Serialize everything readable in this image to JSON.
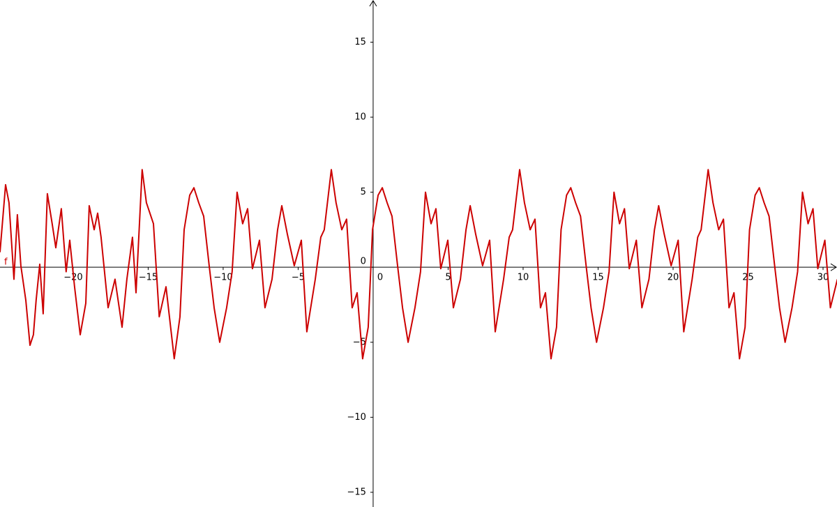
{
  "chart_data": {
    "type": "line",
    "xlim": [
      -24.88,
      30.93
    ],
    "ylim": [
      -15.98,
      17.81
    ],
    "xticks": [
      {
        "value": -20,
        "label": "−20"
      },
      {
        "value": -15,
        "label": "−15"
      },
      {
        "value": -10,
        "label": "−10"
      },
      {
        "value": -5,
        "label": "−5"
      },
      0,
      5,
      10,
      15,
      20,
      25,
      30
    ],
    "yticks": [
      {
        "value": -15,
        "label": "−15"
      },
      {
        "value": -10,
        "label": "−10"
      },
      {
        "value": -5,
        "label": "−5"
      },
      0,
      5,
      10,
      15
    ],
    "x": [
      -24.88,
      -24.51,
      -24.28,
      -23.95,
      -23.72,
      -23.49,
      -23.16,
      -22.88,
      -22.65,
      -22.47,
      -22.23,
      -22.0,
      -21.72,
      -21.4,
      -21.16,
      -20.79,
      -20.47,
      -20.23,
      -19.91,
      -19.53,
      -19.16,
      -18.93,
      -18.6,
      -18.37,
      -18.14,
      -17.67,
      -17.21,
      -16.74,
      -16.42,
      -16.05,
      -15.81,
      -15.4,
      -15.12,
      -14.65,
      -14.26,
      -13.81,
      -13.26,
      -12.88,
      -12.6,
      -12.23,
      -11.95,
      -11.63,
      -11.3,
      -10.93,
      -10.6,
      -10.23,
      -9.77,
      -9.4,
      -9.07,
      -8.7,
      -8.37,
      -8.05,
      -7.58,
      -7.21,
      -6.74,
      -6.37,
      -6.09,
      -5.72,
      -5.26,
      -4.79,
      -4.42,
      -3.86,
      -3.49,
      -3.26,
      -2.79,
      -2.47,
      -2.09,
      -1.77,
      -1.4,
      -1.07,
      -0.7,
      -0.33,
      -0.04,
      0.33,
      0.61,
      0.93,
      1.26,
      1.63,
      1.96,
      2.33,
      2.79,
      3.16,
      3.49,
      3.86,
      4.19,
      4.51,
      4.98,
      5.35,
      5.82,
      6.19,
      6.47,
      6.84,
      7.3,
      7.77,
      8.14,
      8.7,
      9.07,
      9.3,
      9.77,
      10.09,
      10.47,
      10.79,
      11.16,
      11.49,
      11.86,
      12.23,
      12.53,
      12.9,
      13.18,
      13.5,
      13.83,
      14.2,
      14.53,
      14.9,
      15.36,
      15.73,
      16.06,
      16.43,
      16.76,
      17.08,
      17.55,
      17.92,
      18.39,
      18.76,
      19.04,
      19.41,
      19.87,
      20.34,
      20.71,
      21.27,
      21.64,
      21.87,
      22.34,
      22.66,
      23.04,
      23.36,
      23.73,
      24.06,
      24.43,
      24.8,
      25.1,
      25.47,
      25.75,
      26.07,
      26.4,
      26.77,
      27.1,
      27.47,
      27.93,
      28.3,
      28.63,
      29.0,
      29.33,
      29.65,
      30.12,
      30.49,
      30.96
    ],
    "series": [
      {
        "name": "f",
        "color": "#cc0000",
        "values": [
          1,
          5.5,
          4.3,
          -0.8,
          3.5,
          0.1,
          -2.2,
          -5.2,
          -4.5,
          -2.2,
          0.2,
          -3.1,
          4.9,
          2.9,
          1.3,
          3.9,
          -0.3,
          1.8,
          -1.3,
          -4.5,
          -2.4,
          4.1,
          2.5,
          3.6,
          2.0,
          -2.7,
          -0.8,
          -4.0,
          -0.8,
          2.0,
          -1.7,
          6.5,
          4.3,
          2.9,
          -3.3,
          -1.3,
          -6.1,
          -3.3,
          2.5,
          4.8,
          5.3,
          4.3,
          3.4,
          0.1,
          -2.7,
          -5.0,
          -2.7,
          -0.3,
          5.0,
          2.9,
          3.9,
          -0.1,
          1.8,
          -2.7,
          -0.8,
          2.5,
          4.1,
          2.2,
          0.1,
          1.8,
          -4.3,
          -0.8,
          2.0,
          2.5,
          6.5,
          4.3,
          2.5,
          3.2,
          -2.7,
          -1.7,
          -6.1,
          -4.0,
          2.5,
          4.8,
          5.3,
          4.3,
          3.4,
          0.1,
          -2.7,
          -5.0,
          -2.7,
          -0.3,
          5.0,
          2.9,
          3.9,
          -0.1,
          1.8,
          -2.7,
          -0.8,
          2.5,
          4.1,
          2.2,
          0.1,
          1.8,
          -4.3,
          -0.8,
          2.0,
          2.5,
          6.5,
          4.3,
          2.5,
          3.2,
          -2.7,
          -1.7,
          -6.1,
          -4.0,
          2.5,
          4.8,
          5.3,
          4.3,
          3.4,
          0.1,
          -2.7,
          -5.0,
          -2.7,
          -0.3,
          5.0,
          2.9,
          3.9,
          -0.1,
          1.8,
          -2.7,
          -0.8,
          2.5,
          4.1,
          2.2,
          0.1,
          1.8,
          -4.3,
          -0.8,
          2.0,
          2.5,
          6.5,
          4.3,
          2.5,
          3.2,
          -2.7,
          -1.7,
          -6.1,
          -4.0,
          2.5,
          4.8,
          5.3,
          4.3,
          3.4,
          0.1,
          -2.7,
          -5.0,
          -2.7,
          -0.3,
          5.0,
          2.9,
          3.9,
          -0.1,
          1.8,
          -2.7,
          -0.8
        ]
      }
    ]
  }
}
